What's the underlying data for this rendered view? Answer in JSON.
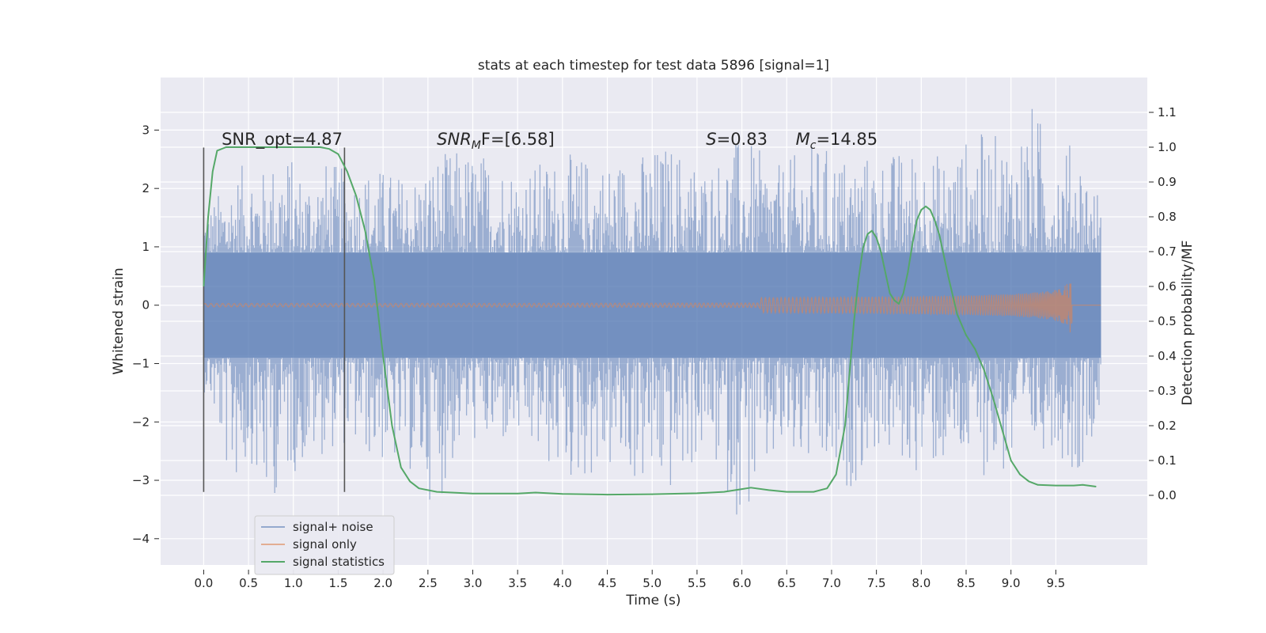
{
  "chart_data": {
    "type": "line",
    "title": "stats at each timestep for test data 5896 [signal=1]",
    "xlabel": "Time (s)",
    "ylabel": "Whitened strain",
    "y2label": "Detection probability/MF",
    "xlim": [
      -0.48,
      10.52
    ],
    "ylim": [
      -4.45,
      3.9
    ],
    "y2lim": [
      -0.2,
      1.2
    ],
    "x_ticks": [
      0.0,
      0.5,
      1.0,
      1.5,
      2.0,
      2.5,
      3.0,
      3.5,
      4.0,
      4.5,
      5.0,
      5.5,
      6.0,
      6.5,
      7.0,
      7.5,
      8.0,
      8.5,
      9.0,
      9.5
    ],
    "x_tick_labels": [
      "0.0",
      "0.5",
      "1.0",
      "1.5",
      "2.0",
      "2.5",
      "3.0",
      "3.5",
      "4.0",
      "4.5",
      "5.0",
      "5.5",
      "6.0",
      "6.5",
      "7.0",
      "7.5",
      "8.0",
      "8.5",
      "9.0",
      "9.5"
    ],
    "y_ticks": [
      -4,
      -3,
      -2,
      -1,
      0,
      1,
      2,
      3
    ],
    "y_tick_labels": [
      "−4",
      "−3",
      "−2",
      "−1",
      "0",
      "1",
      "2",
      "3"
    ],
    "y2_ticks": [
      0.0,
      0.1,
      0.2,
      0.3,
      0.4,
      0.5,
      0.6,
      0.7,
      0.8,
      0.9,
      1.0,
      1.1
    ],
    "y2_tick_labels": [
      "0.0",
      "0.1",
      "0.2",
      "0.3",
      "0.4",
      "0.5",
      "0.6",
      "0.7",
      "0.8",
      "0.9",
      "1.0",
      "1.1"
    ],
    "grid": true,
    "legend_placement": "lower-left",
    "colors": {
      "signal_noise": "#4c72b0",
      "signal_only": "#dd8452",
      "signal_statistics": "#55a868",
      "axes_bg": "#eaeaf2",
      "grid": "#ffffff",
      "vline": "#555555"
    },
    "annotations": [
      {
        "label": "SNR_opt=4.87",
        "x": 0.2,
        "y": 2.75
      },
      {
        "label_main": "SNR",
        "label_sub": "M",
        "label_rest": "F=[6.58]",
        "x": 2.6,
        "y": 2.75
      },
      {
        "label_main": "S",
        "label_rest": "=0.83",
        "x": 5.6,
        "y": 2.75
      },
      {
        "label_main": "M",
        "label_sub": "c",
        "label_rest": "=14.85",
        "x": 6.6,
        "y": 2.75
      }
    ],
    "vertical_lines": [
      {
        "x": 0.0,
        "y_range": [
          -3.2,
          2.7
        ]
      },
      {
        "x": 1.57,
        "y_range": [
          -3.2,
          2.7
        ]
      }
    ],
    "series": [
      {
        "name": "signal+ noise",
        "x_range": [
          0.0,
          10.0
        ],
        "band": [
          -0.9,
          0.9
        ],
        "spikes": [
          [
            0.05,
            1.7,
            -1.5
          ],
          [
            0.3,
            2.2,
            -3.2
          ],
          [
            0.55,
            2.6,
            -2.7
          ],
          [
            0.65,
            2.3,
            -3.7
          ],
          [
            0.9,
            2.7,
            -3.0
          ],
          [
            1.1,
            2.3,
            -2.8
          ],
          [
            1.4,
            2.5,
            -2.5
          ],
          [
            1.6,
            2.3,
            -2.4
          ],
          [
            1.9,
            2.4,
            -2.7
          ],
          [
            2.3,
            2.2,
            -2.9
          ],
          [
            2.6,
            2.6,
            -3.5
          ],
          [
            2.9,
            2.7,
            -2.3
          ],
          [
            3.2,
            2.6,
            -2.5
          ],
          [
            3.5,
            2.4,
            -2.4
          ],
          [
            3.8,
            2.5,
            -2.8
          ],
          [
            4.1,
            2.6,
            -3.1
          ],
          [
            4.5,
            2.5,
            -2.9
          ],
          [
            4.8,
            2.6,
            -3.1
          ],
          [
            5.2,
            2.8,
            -3.3
          ],
          [
            5.6,
            2.4,
            -2.5
          ],
          [
            6.0,
            2.9,
            -3.8
          ],
          [
            6.4,
            2.4,
            -2.7
          ],
          [
            6.8,
            2.8,
            -2.9
          ],
          [
            7.15,
            2.6,
            -3.3
          ],
          [
            7.5,
            2.6,
            -2.5
          ],
          [
            7.9,
            2.7,
            -2.9
          ],
          [
            8.3,
            2.6,
            -2.8
          ],
          [
            8.6,
            3.0,
            -2.9
          ],
          [
            9.0,
            2.9,
            -3.0
          ],
          [
            9.25,
            3.5,
            -2.6
          ],
          [
            9.45,
            2.8,
            -2.4
          ],
          [
            9.75,
            2.8,
            -3.0
          ],
          [
            9.95,
            2.0,
            -2.0
          ]
        ]
      },
      {
        "name": "signal only",
        "chirp_end": 9.68,
        "chirp_amplitude": 0.7
      },
      {
        "name": "signal statistics",
        "x": [
          0.0,
          0.05,
          0.1,
          0.15,
          0.25,
          0.4,
          0.6,
          0.8,
          1.0,
          1.2,
          1.3,
          1.4,
          1.5,
          1.6,
          1.7,
          1.8,
          1.9,
          2.0,
          2.05,
          2.1,
          2.2,
          2.3,
          2.4,
          2.6,
          3.0,
          3.5,
          3.7,
          4.0,
          4.5,
          5.0,
          5.5,
          5.8,
          6.0,
          6.1,
          6.3,
          6.5,
          6.8,
          6.95,
          7.05,
          7.15,
          7.2,
          7.25,
          7.3,
          7.35,
          7.4,
          7.45,
          7.5,
          7.55,
          7.6,
          7.65,
          7.7,
          7.75,
          7.8,
          7.85,
          7.9,
          7.95,
          8.0,
          8.05,
          8.1,
          8.15,
          8.2,
          8.3,
          8.4,
          8.5,
          8.6,
          8.7,
          8.8,
          8.9,
          9.0,
          9.1,
          9.2,
          9.3,
          9.5,
          9.7,
          9.8,
          9.95
        ],
        "y": [
          0.6,
          0.8,
          0.93,
          0.99,
          1.0,
          1.0,
          1.0,
          1.0,
          1.0,
          1.0,
          1.0,
          0.995,
          0.98,
          0.93,
          0.86,
          0.76,
          0.62,
          0.4,
          0.3,
          0.2,
          0.08,
          0.04,
          0.02,
          0.01,
          0.005,
          0.005,
          0.008,
          0.004,
          0.002,
          0.003,
          0.006,
          0.01,
          0.018,
          0.022,
          0.015,
          0.01,
          0.01,
          0.02,
          0.06,
          0.2,
          0.35,
          0.5,
          0.62,
          0.71,
          0.75,
          0.76,
          0.74,
          0.7,
          0.64,
          0.58,
          0.56,
          0.55,
          0.58,
          0.64,
          0.72,
          0.79,
          0.82,
          0.83,
          0.82,
          0.79,
          0.75,
          0.63,
          0.52,
          0.46,
          0.42,
          0.36,
          0.28,
          0.19,
          0.1,
          0.06,
          0.04,
          0.03,
          0.028,
          0.028,
          0.03,
          0.025
        ]
      }
    ]
  }
}
